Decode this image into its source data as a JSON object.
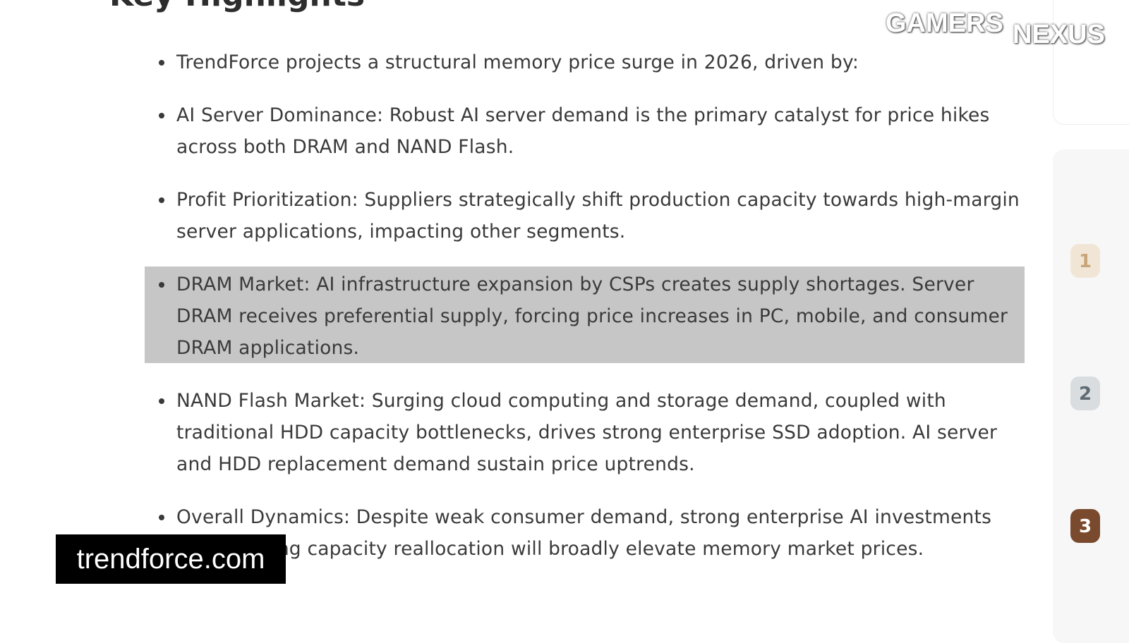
{
  "article": {
    "heading": "Key Highlights",
    "bullets": [
      "TrendForce projects a structural memory price surge in 2026, driven by:",
      "AI Server Dominance: Robust AI server demand is the primary catalyst for price hikes across both DRAM and NAND Flash.",
      "Profit Prioritization: Suppliers strategically shift production capacity towards high-margin server applications, impacting other segments.",
      "DRAM Market: AI infrastructure expansion by CSPs creates supply shortages. Server DRAM receives preferential supply, forcing price increases in PC, mobile, and consumer DRAM applications.",
      "NAND Flash Market: Surging cloud computing and storage demand, coupled with traditional HDD capacity bottlenecks, drives strong enterprise SSD adoption. AI server and HDD replacement demand sustain price uptrends.",
      "Overall Dynamics: Despite weak consumer demand, strong enterprise AI investments and resulting capacity reallocation will broadly elevate memory market prices."
    ]
  },
  "sidebar": {
    "badges": [
      "1",
      "2",
      "3"
    ]
  },
  "overlay": {
    "source": "trendforce.com",
    "logo": [
      "GAMERS",
      "NEXUS"
    ]
  }
}
